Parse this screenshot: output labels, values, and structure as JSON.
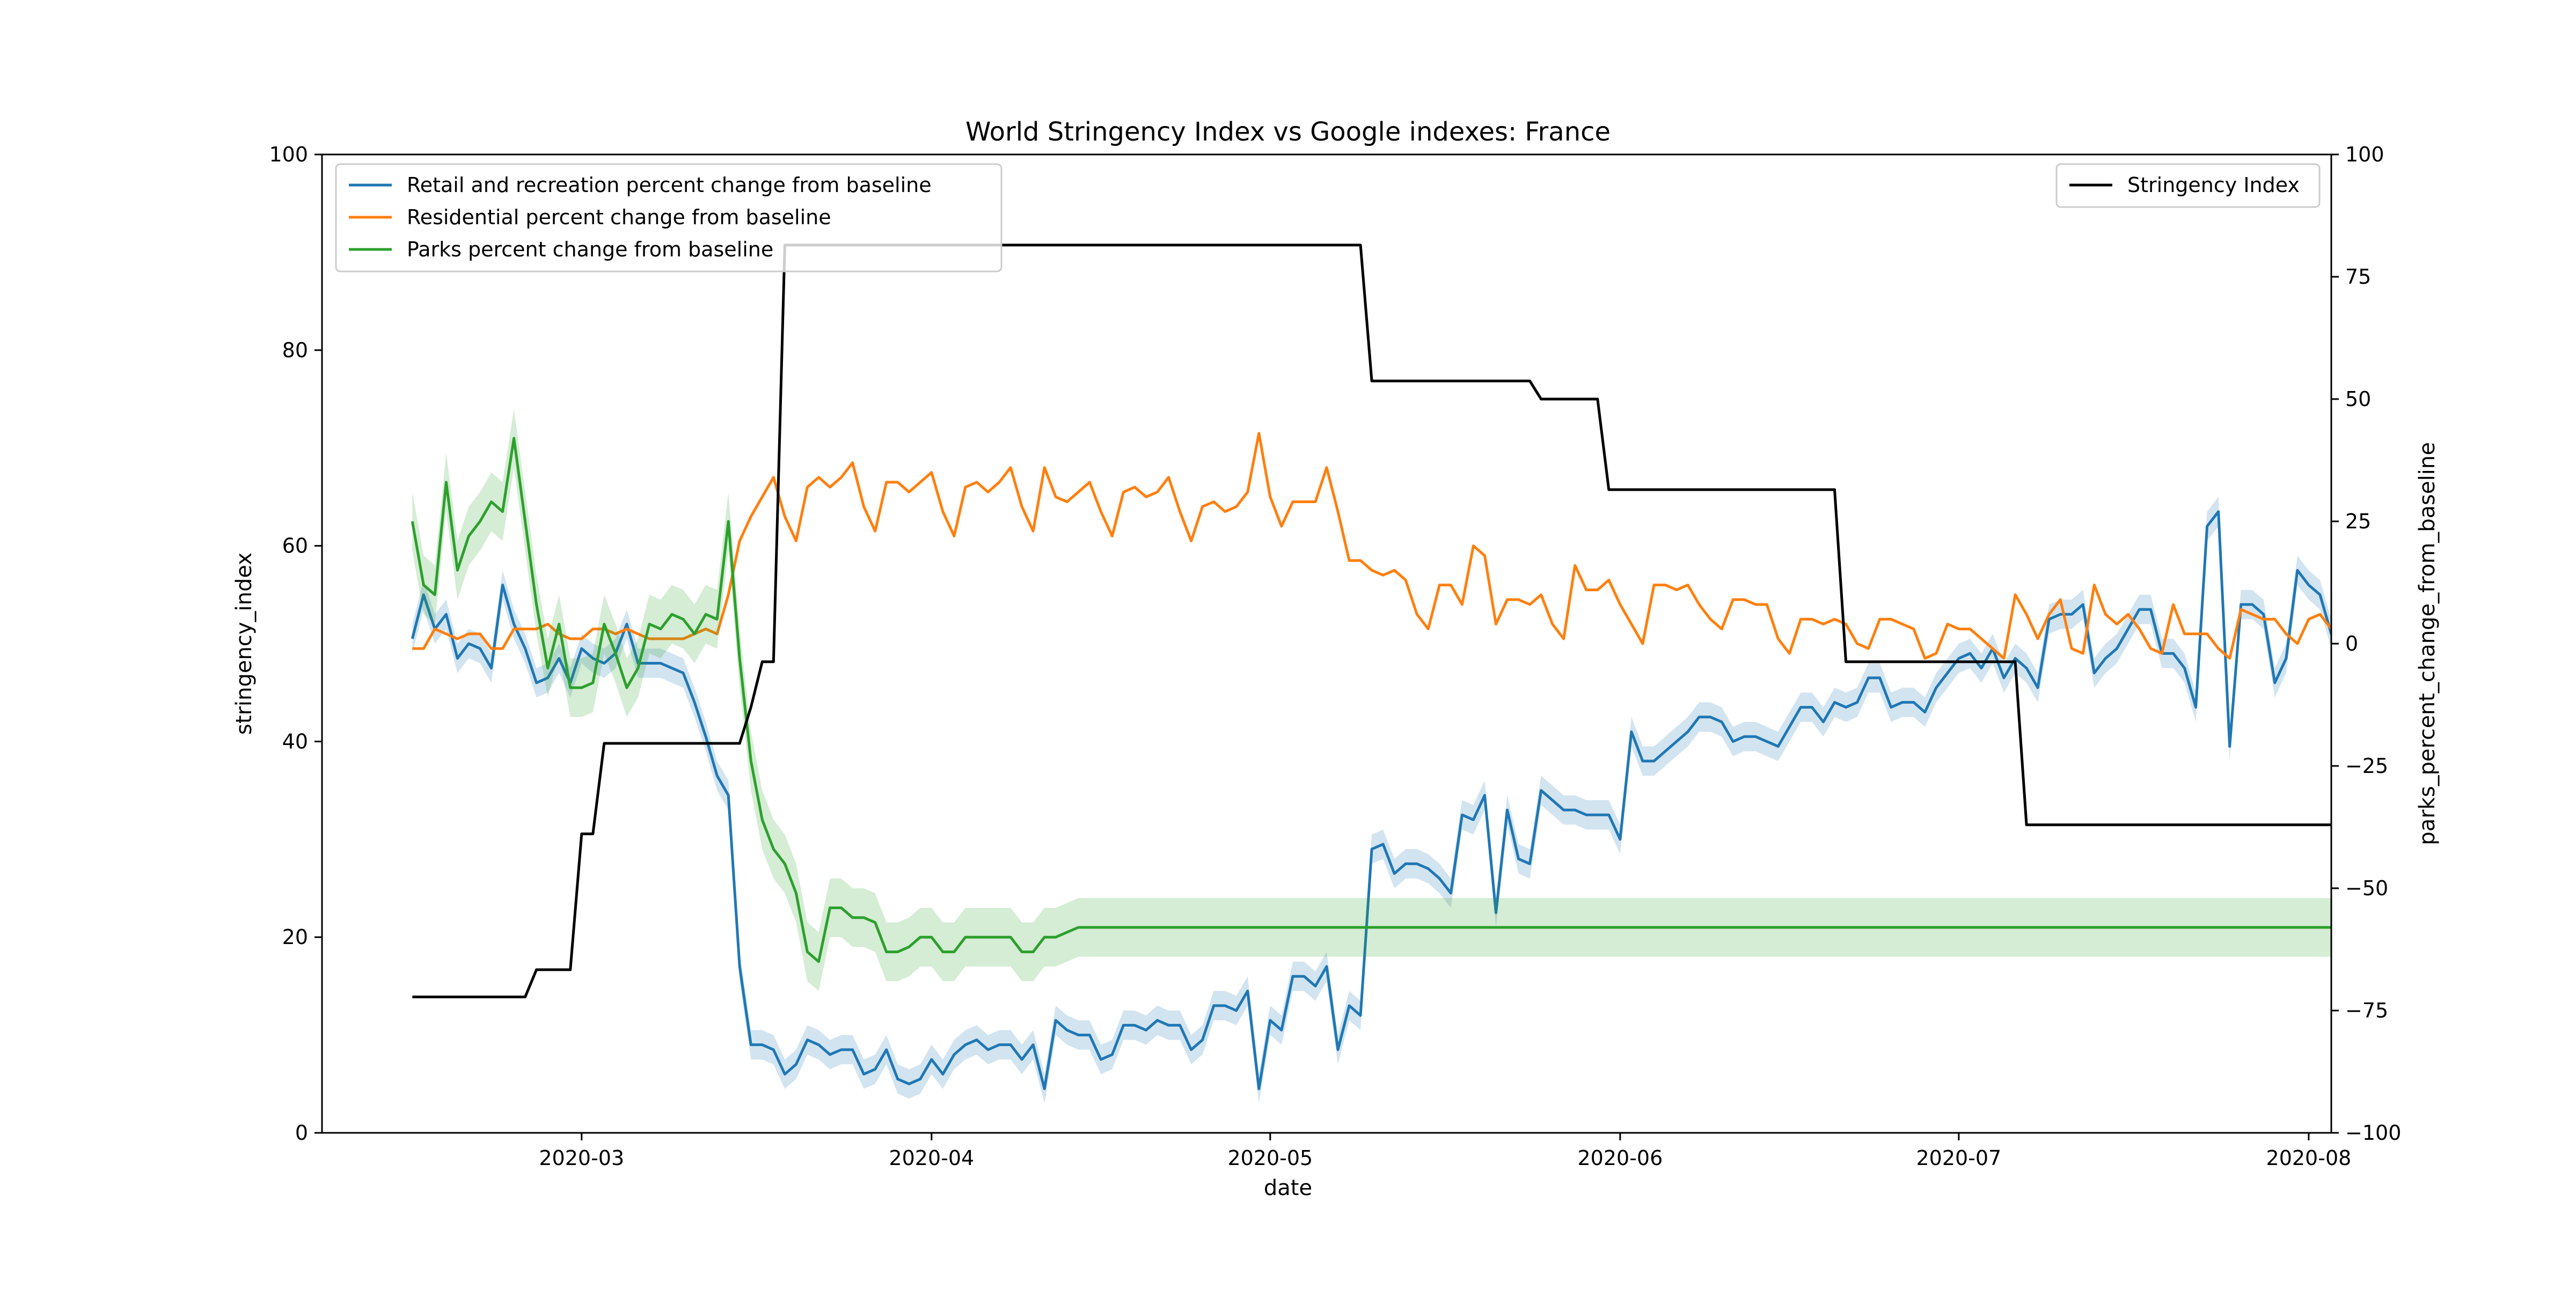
{
  "chart_data": {
    "type": "line",
    "title": "World Stringency Index vs Google indexes: France",
    "xlabel": "date",
    "ylabel": "stringency_index",
    "ylabel_right": "parks_percent_change_from_baseline",
    "x_start": "2020-02-15",
    "x_end": "2020-07-26",
    "xlim": [
      "2020-02-07",
      "2020-08-03"
    ],
    "x_ticks": [
      "2020-03",
      "2020-04",
      "2020-05",
      "2020-06",
      "2020-07",
      "2020-08"
    ],
    "ylim": [
      0,
      100
    ],
    "y_ticks": [
      0,
      20,
      40,
      60,
      80,
      100
    ],
    "ylim_right": [
      -100,
      100
    ],
    "y_ticks_right": [
      -100,
      -75,
      -50,
      -25,
      0,
      25,
      50,
      75,
      100
    ],
    "y_tick_labels_right": [
      "−100",
      "−75",
      "−50",
      "−25",
      "0",
      "25",
      "50",
      "75",
      "100"
    ],
    "grid": false,
    "legend_left": {
      "placement": "upper-left",
      "entries": [
        {
          "name": "Retail and recreation percent change from baseline",
          "color": "#1f77b4"
        },
        {
          "name": "Residential percent change from baseline",
          "color": "#ff7f0e"
        },
        {
          "name": "Parks percent change from baseline",
          "color": "#2ca02c"
        }
      ]
    },
    "legend_right": {
      "placement": "upper-right",
      "entries": [
        {
          "name": "Stringency Index",
          "color": "#000000"
        }
      ]
    },
    "series": [
      {
        "name": "Retail and recreation percent change from baseline",
        "axis": "right",
        "color": "#1f77b4",
        "band": 3,
        "values": [
          1,
          10,
          3,
          6,
          -3,
          0,
          -1,
          -5,
          12,
          4,
          -1,
          -8,
          -7,
          -3,
          -8,
          -1,
          -3,
          -4,
          -2,
          4,
          -4,
          -4,
          -4,
          -5,
          -6,
          -12,
          -19,
          -27,
          -31,
          -66,
          -82,
          -82,
          -83,
          -88,
          -86,
          -81,
          -82,
          -84,
          -83,
          -83,
          -88,
          -87,
          -83,
          -89,
          -90,
          -89,
          -85,
          -88,
          -84,
          -82,
          -81,
          -83,
          -82,
          -82,
          -85,
          -82,
          -91,
          -77,
          -79,
          -80,
          -80,
          -85,
          -84,
          -78,
          -78,
          -79,
          -77,
          -78,
          -78,
          -83,
          -81,
          -74,
          -74,
          -75,
          -71,
          -91,
          -77,
          -79,
          -68,
          -68,
          -70,
          -66,
          -83,
          -74,
          -76,
          -42,
          -41,
          -47,
          -45,
          -45,
          -46,
          -48,
          -51,
          -35,
          -36,
          -31,
          -55,
          -34,
          -44,
          -45,
          -30,
          -32,
          -34,
          -34,
          -35,
          -35,
          -35,
          -40,
          -18,
          -24,
          -24,
          -22,
          -20,
          -18,
          -15,
          -15,
          -16,
          -20,
          -19,
          -19,
          -20,
          -21,
          -17,
          -13,
          -13,
          -16,
          -12,
          -13,
          -12,
          -7,
          -7,
          -13,
          -12,
          -12,
          -14,
          -9,
          -6,
          -3,
          -2,
          -5,
          -1,
          -7,
          -3,
          -5,
          -9,
          5,
          6,
          6,
          8,
          -6,
          -3,
          -1,
          3,
          7,
          7,
          -2,
          -2,
          -5,
          -13,
          24,
          27,
          -21,
          8,
          8,
          6,
          -8,
          -3,
          15,
          12,
          10,
          2,
          3,
          4,
          2,
          -2,
          -7,
          13,
          9
        ]
      },
      {
        "name": "Residential percent change from baseline",
        "axis": "right",
        "color": "#ff7f0e",
        "band": 0,
        "values": [
          -1,
          -1,
          3,
          2,
          1,
          2,
          2,
          -1,
          -1,
          3,
          3,
          3,
          4,
          2,
          1,
          1,
          3,
          3,
          2,
          3,
          2,
          1,
          1,
          1,
          1,
          2,
          3,
          2,
          10,
          21,
          26,
          30,
          34,
          26,
          21,
          32,
          34,
          32,
          34,
          37,
          28,
          23,
          33,
          33,
          31,
          33,
          35,
          27,
          22,
          32,
          33,
          31,
          33,
          36,
          28,
          23,
          36,
          30,
          29,
          31,
          33,
          27,
          22,
          31,
          32,
          30,
          31,
          34,
          27,
          21,
          28,
          29,
          27,
          28,
          31,
          43,
          30,
          24,
          29,
          29,
          29,
          36,
          27,
          17,
          17,
          15,
          14,
          15,
          13,
          6,
          3,
          12,
          12,
          8,
          20,
          18,
          4,
          9,
          9,
          8,
          10,
          4,
          1,
          16,
          11,
          11,
          13,
          8,
          4,
          0,
          12,
          12,
          11,
          12,
          8,
          5,
          3,
          9,
          9,
          8,
          8,
          1,
          -2,
          5,
          5,
          4,
          5,
          4,
          0,
          -1,
          5,
          5,
          4,
          3,
          -3,
          -2,
          4,
          3,
          3,
          1,
          -1,
          -3,
          10,
          6,
          1,
          6,
          9,
          -1,
          -2,
          12,
          6,
          4,
          6,
          3,
          -1,
          -2,
          8,
          2,
          2,
          2,
          -1,
          -3,
          7,
          6,
          5,
          5,
          2,
          0,
          5,
          6,
          3,
          -2,
          6
        ]
      },
      {
        "name": "Parks percent change from baseline",
        "axis": "right",
        "color": "#2ca02c",
        "band": 6,
        "values": [
          25,
          12,
          10,
          33,
          15,
          22,
          25,
          29,
          27,
          42,
          25,
          8,
          -5,
          4,
          -9,
          -9,
          -8,
          4,
          -2,
          -9,
          -5,
          4,
          3,
          6,
          5,
          2,
          6,
          5,
          25,
          -3,
          -24,
          -36,
          -42,
          -45,
          -51,
          -63,
          -65,
          -54,
          -54,
          -56,
          -56,
          -57,
          -63,
          -63,
          -62,
          -60,
          -60,
          -63,
          -63,
          -60,
          -60,
          -60,
          -60,
          -60,
          -63,
          -63,
          -60,
          -60,
          -59,
          -58,
          -58,
          -58,
          -58,
          -58,
          -58,
          -58,
          -58,
          -58,
          -58,
          -58,
          -58,
          -58,
          -58,
          -58,
          -58,
          -58,
          -58,
          -58,
          -58,
          -58,
          -58,
          -58,
          -58,
          -58,
          -58,
          -58,
          -58,
          -58,
          -58,
          -58,
          -58,
          -58,
          -58,
          -58,
          -58,
          -58,
          -58,
          -58,
          -58,
          -58,
          -58,
          -58,
          -58,
          -58,
          -58,
          -58,
          -58,
          -58,
          -58,
          -58,
          -58,
          -58,
          -58,
          -58,
          -58,
          -58,
          -58,
          -58,
          -58,
          -58,
          -58,
          -58,
          -58,
          -58,
          -58,
          -58,
          -58,
          -58,
          -58,
          -58,
          -58,
          -58,
          -58,
          -58,
          -58,
          -58,
          -58,
          -58,
          -58,
          -58,
          -58,
          -58,
          -58,
          -58,
          -58,
          -58,
          -58,
          -58,
          -58,
          -58,
          -58,
          -58,
          -58,
          -58,
          -58,
          -58,
          -58,
          -58,
          -58,
          -58,
          -58,
          -58,
          -58,
          -58,
          -58,
          -58,
          -58,
          -58,
          -58,
          -58,
          -58,
          -58,
          -58,
          -58,
          -58,
          -58,
          -58
        ]
      },
      {
        "name": "Stringency Index",
        "axis": "left",
        "color": "#000000",
        "band": 0,
        "values": [
          13.89,
          13.89,
          13.89,
          13.89,
          13.89,
          13.89,
          13.89,
          13.89,
          13.89,
          13.89,
          13.89,
          16.67,
          16.67,
          16.67,
          16.67,
          30.56,
          30.56,
          39.81,
          39.81,
          39.81,
          39.81,
          39.81,
          39.81,
          39.81,
          39.81,
          39.81,
          39.81,
          39.81,
          39.81,
          39.81,
          43.52,
          48.15,
          48.15,
          90.74,
          90.74,
          90.74,
          90.74,
          90.74,
          90.74,
          90.74,
          90.74,
          90.74,
          90.74,
          90.74,
          90.74,
          90.74,
          90.74,
          90.74,
          90.74,
          90.74,
          90.74,
          90.74,
          90.74,
          90.74,
          90.74,
          90.74,
          90.74,
          90.74,
          90.74,
          90.74,
          90.74,
          90.74,
          90.74,
          90.74,
          90.74,
          90.74,
          90.74,
          90.74,
          90.74,
          90.74,
          90.74,
          90.74,
          90.74,
          90.74,
          90.74,
          90.74,
          90.74,
          90.74,
          90.74,
          90.74,
          90.74,
          90.74,
          90.74,
          90.74,
          90.74,
          76.85,
          76.85,
          76.85,
          76.85,
          76.85,
          76.85,
          76.85,
          76.85,
          76.85,
          76.85,
          76.85,
          76.85,
          76.85,
          76.85,
          76.85,
          75,
          75,
          75,
          75,
          75,
          75,
          65.74,
          65.74,
          65.74,
          65.74,
          65.74,
          65.74,
          65.74,
          65.74,
          65.74,
          65.74,
          65.74,
          65.74,
          65.74,
          65.74,
          65.74,
          65.74,
          65.74,
          65.74,
          65.74,
          65.74,
          65.74,
          48.15,
          48.15,
          48.15,
          48.15,
          48.15,
          48.15,
          48.15,
          48.15,
          48.15,
          48.15,
          48.15,
          48.15,
          48.15,
          48.15,
          48.15,
          48.15,
          31.48,
          31.48,
          31.48,
          31.48,
          31.48,
          31.48,
          31.48,
          31.48,
          31.48,
          31.48,
          31.48,
          31.48,
          31.48,
          31.48,
          31.48,
          31.48,
          31.48,
          31.48,
          31.48,
          31.48,
          31.48,
          31.48,
          31.48,
          31.48,
          31.48,
          31.48,
          31.48,
          31.48,
          31.48,
          31.48,
          31.48,
          31.48,
          31.48
        ]
      }
    ]
  }
}
